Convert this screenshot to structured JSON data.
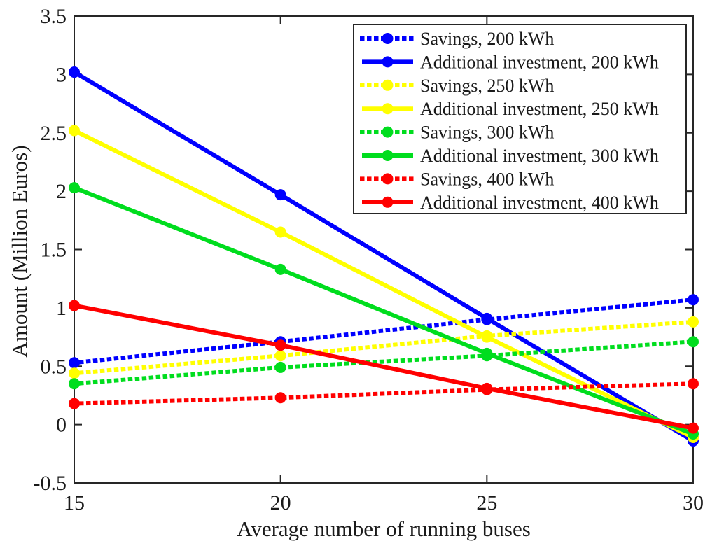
{
  "figure": {
    "background": "#ffffff",
    "axis_color": "#262626",
    "text_color": "#1a1a1a"
  },
  "chart_data": {
    "type": "line",
    "title": "",
    "xlabel": "Average number of running buses",
    "ylabel": "Amount (Million Euros)",
    "xlim": [
      15,
      30
    ],
    "ylim": [
      -0.5,
      3.5
    ],
    "xticks": [
      15,
      20,
      25,
      30
    ],
    "yticks": [
      -0.5,
      0,
      0.5,
      1,
      1.5,
      2,
      2.5,
      3,
      3.5
    ],
    "grid": false,
    "legend_position": "top-right",
    "marker": "circle",
    "x": [
      15,
      20,
      25,
      30
    ],
    "series": [
      {
        "name": "Savings, 200 kWh",
        "color": "#0000ff",
        "style": "dotted",
        "values": [
          0.53,
          0.71,
          0.9,
          1.07
        ]
      },
      {
        "name": "Additional investment, 200 kWh",
        "color": "#0000ff",
        "style": "solid",
        "values": [
          3.02,
          1.97,
          0.91,
          -0.14
        ]
      },
      {
        "name": "Savings, 250 kWh",
        "color": "#ffff00",
        "style": "dotted",
        "values": [
          0.44,
          0.59,
          0.76,
          0.88
        ]
      },
      {
        "name": "Additional investment, 250 kWh",
        "color": "#ffff00",
        "style": "solid",
        "values": [
          2.52,
          1.65,
          0.75,
          -0.11
        ]
      },
      {
        "name": "Savings, 300 kWh",
        "color": "#00dd1e",
        "style": "dotted",
        "values": [
          0.35,
          0.49,
          0.59,
          0.71
        ]
      },
      {
        "name": "Additional investment, 300 kWh",
        "color": "#00dd1e",
        "style": "solid",
        "values": [
          2.03,
          1.33,
          0.61,
          -0.08
        ]
      },
      {
        "name": "Savings, 400 kWh",
        "color": "#ff0000",
        "style": "dotted",
        "values": [
          0.18,
          0.23,
          0.3,
          0.35
        ]
      },
      {
        "name": "Additional investment, 400 kWh",
        "color": "#ff0000",
        "style": "solid",
        "values": [
          1.02,
          0.68,
          0.31,
          -0.03
        ]
      }
    ]
  }
}
